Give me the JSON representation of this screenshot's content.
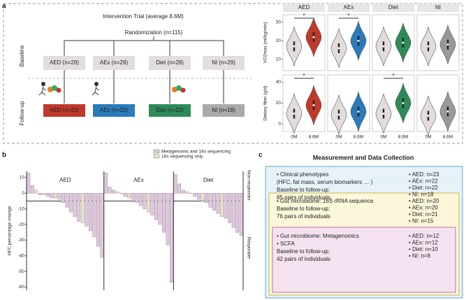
{
  "panel_labels": [
    "a",
    "b",
    "c"
  ],
  "diagram": {
    "title": "Intervention   Trial (average 8.6M)",
    "randomization": "Randomization (n=115)",
    "stages": [
      "Baseline",
      "Follow-up"
    ],
    "baseline": [
      "AED (n=29)",
      "AEx (n=29)",
      "Diet (n=28)",
      "NI (n=29)"
    ],
    "followup": [
      "AED (n=23)",
      "AEx (n=22)",
      "Diet (n=22)",
      "NI (n=18)"
    ],
    "colors": [
      "#c0392b",
      "#2b7bba",
      "#2e8b57",
      "#aaaaaa"
    ]
  },
  "chart_data": [
    {
      "type": "violin",
      "title": "AED",
      "values": [
        17,
        22
      ],
      "colors": [
        "#e3dcdc",
        "#c0392b"
      ],
      "ylim": [
        5,
        33
      ],
      "yticks": [
        10,
        20,
        30
      ],
      "ylabel": "VO2max (ml/kg/min)",
      "annotation": "*"
    },
    {
      "type": "violin",
      "title": "AEx",
      "values": [
        16,
        20
      ],
      "colors": [
        "#e3dcdc",
        "#2b7bba"
      ],
      "ylim": [
        5,
        33
      ],
      "annotation": "*"
    },
    {
      "type": "violin",
      "title": "Diet",
      "values": [
        17,
        19
      ],
      "colors": [
        "#e3dcdc",
        "#2e8b57"
      ],
      "ylim": [
        5,
        33
      ]
    },
    {
      "type": "violin",
      "title": "NI",
      "values": [
        17,
        18
      ],
      "colors": [
        "#e3dcdc",
        "#999999"
      ],
      "ylim": [
        5,
        33
      ]
    },
    {
      "type": "violin",
      "categories": [
        "0M",
        "8.6M"
      ],
      "values": [
        10,
        18
      ],
      "colors": [
        "#e3dcdc",
        "#c0392b"
      ],
      "ylim": [
        -5,
        45
      ],
      "yticks": [
        0,
        20,
        40
      ],
      "ylabel": "Dietary fiber (g/d)",
      "annotation": "*"
    },
    {
      "type": "violin",
      "categories": [
        "0M",
        "8.6M"
      ],
      "values": [
        9,
        12
      ],
      "colors": [
        "#e3dcdc",
        "#2b7bba"
      ],
      "ylim": [
        -5,
        45
      ]
    },
    {
      "type": "violin",
      "categories": [
        "0M",
        "8.6M"
      ],
      "values": [
        10,
        20
      ],
      "colors": [
        "#e3dcdc",
        "#2e8b57"
      ],
      "ylim": [
        -5,
        45
      ],
      "annotation": "*"
    },
    {
      "type": "violin",
      "categories": [
        "0M",
        "8.6M"
      ],
      "values": [
        8,
        12
      ],
      "colors": [
        "#e3dcdc",
        "#999999"
      ],
      "ylim": [
        -5,
        45
      ]
    },
    {
      "type": "bar",
      "ylabel": "HFC percentage change",
      "series": [
        {
          "name": "Metagenomic and 16s sequencing",
          "color": "#ddc8dc"
        },
        {
          "name": "16s sequencing only",
          "color": "#e8e4c8"
        }
      ],
      "groups": [
        {
          "name": "AED",
          "series": [
            [
              13,
              5,
              null,
              -1,
              null,
              -2,
              -3,
              null,
              -4,
              -6,
              -9,
              -12,
              -15,
              -18,
              null,
              -21,
              -24,
              -28,
              -34,
              -41
            ],
            [
              null,
              null,
              2,
              null,
              -1,
              null,
              null,
              -3,
              null,
              null,
              null,
              null,
              null,
              null,
              -19,
              null,
              null,
              null,
              null,
              null
            ]
          ]
        },
        {
          "name": "AEx",
          "series": [
            [
              13,
              4,
              2,
              null,
              0,
              -2,
              null,
              -4,
              -6,
              -8,
              -10,
              null,
              -14,
              -17,
              -20,
              -25,
              -33,
              -57
            ],
            [
              null,
              null,
              null,
              1,
              null,
              null,
              -3,
              null,
              null,
              null,
              null,
              -12,
              null,
              null,
              null,
              null,
              null,
              null
            ]
          ]
        },
        {
          "name": "Diet",
          "series": [
            [
              12,
              6,
              2,
              null,
              0,
              -2,
              -4,
              null,
              -6,
              -9,
              -11,
              -13,
              null,
              -16,
              -19,
              -22,
              -25,
              -27
            ],
            [
              null,
              null,
              null,
              1,
              null,
              null,
              null,
              -5,
              null,
              null,
              null,
              null,
              -15,
              null,
              null,
              null,
              null,
              null
            ]
          ]
        }
      ],
      "threshold": -5,
      "side_labels": [
        "Non-responder",
        "Responder"
      ],
      "ylim": [
        -62,
        14
      ],
      "yticks": [
        10,
        0,
        -10,
        -20,
        -30,
        -40,
        -50,
        -60
      ]
    }
  ],
  "panel_c": {
    "title": "Measurement and Data Collection",
    "sections": [
      {
        "lines": [
          "• Clinical phenotypes",
          "(HFC, fat mass, serum biomarkers … )",
          "Baseline to follow-up:",
          "85 pairs of individuals"
        ],
        "counts": [
          "• AED: n=23",
          "• AEx: n=22",
          "• Diet: n=22",
          "• NI:    n=18"
        ]
      },
      {
        "lines": [
          "• Gut microbiome: 16S rRNA sequence",
          "Baseline to follow-up:",
          "76 pairs of individuals"
        ],
        "counts": [
          "• AED: n=20",
          "• AEx: n=20",
          "• Diet: n=21",
          "• NI:    n=15"
        ]
      },
      {
        "lines": [
          "• Gut microbiome: Metagenomics",
          "• SCFA",
          "Baseline to follow-up:",
          "42 pairs of individuals"
        ],
        "counts": [
          "• AED: n=12",
          "• AEx: n=12",
          "• Diet: n=10",
          "• NI:    n=8"
        ]
      }
    ]
  }
}
